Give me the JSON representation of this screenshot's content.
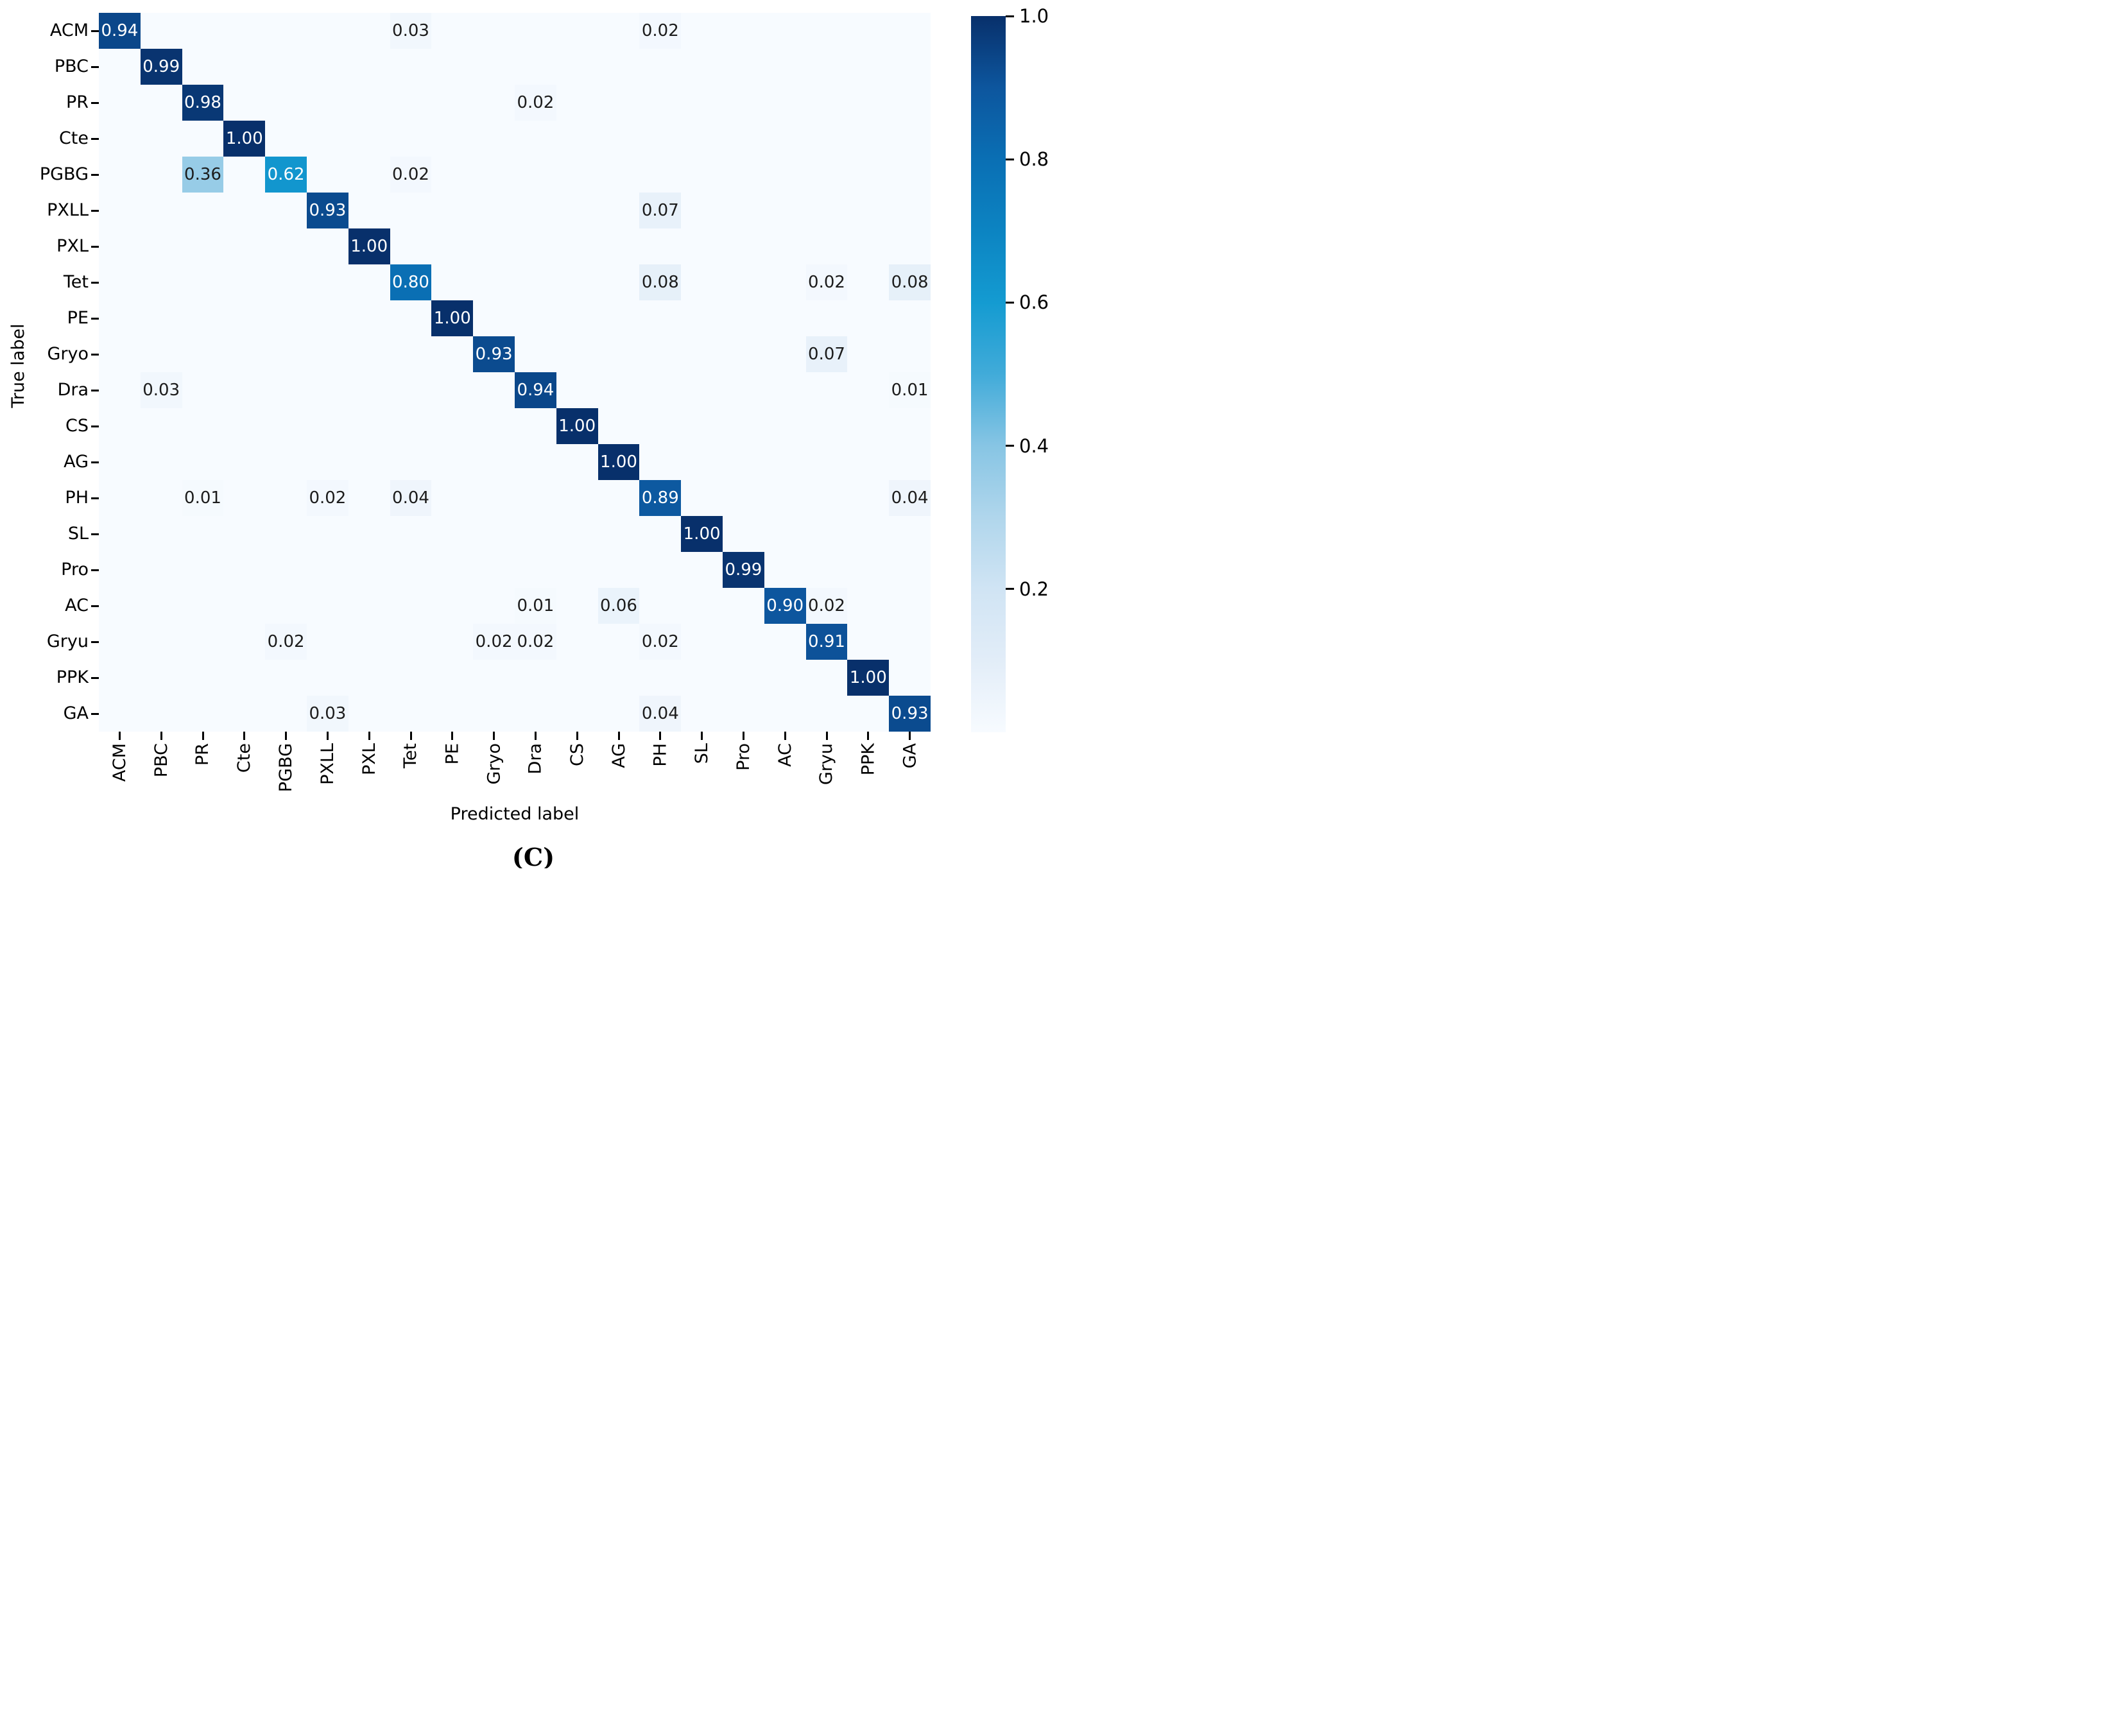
{
  "chart_data": {
    "type": "heatmap",
    "title": "",
    "xlabel": "Predicted label",
    "ylabel": "True label",
    "caption": "(C)",
    "labels": [
      "ACM",
      "PBC",
      "PR",
      "Cte",
      "PGBG",
      "PXLL",
      "PXL",
      "Tet",
      "PE",
      "Gryo",
      "Dra",
      "CS",
      "AG",
      "PH",
      "SL",
      "Pro",
      "AC",
      "Gryu",
      "PPK",
      "GA"
    ],
    "matrix": [
      [
        0.94,
        0,
        0,
        0,
        0,
        0,
        0,
        0.03,
        0,
        0,
        0,
        0,
        0,
        0.02,
        0,
        0,
        0,
        0,
        0,
        0
      ],
      [
        0,
        0.99,
        0,
        0,
        0,
        0,
        0,
        0,
        0,
        0,
        0,
        0,
        0,
        0,
        0,
        0,
        0,
        0,
        0,
        0
      ],
      [
        0,
        0,
        0.98,
        0,
        0,
        0,
        0,
        0,
        0,
        0,
        0.02,
        0,
        0,
        0,
        0,
        0,
        0,
        0,
        0,
        0
      ],
      [
        0,
        0,
        0,
        1.0,
        0,
        0,
        0,
        0,
        0,
        0,
        0,
        0,
        0,
        0,
        0,
        0,
        0,
        0,
        0,
        0
      ],
      [
        0,
        0,
        0.36,
        0,
        0.62,
        0,
        0,
        0.02,
        0,
        0,
        0,
        0,
        0,
        0,
        0,
        0,
        0,
        0,
        0,
        0
      ],
      [
        0,
        0,
        0,
        0,
        0,
        0.93,
        0,
        0,
        0,
        0,
        0,
        0,
        0,
        0.07,
        0,
        0,
        0,
        0,
        0,
        0
      ],
      [
        0,
        0,
        0,
        0,
        0,
        0,
        1.0,
        0,
        0,
        0,
        0,
        0,
        0,
        0,
        0,
        0,
        0,
        0,
        0,
        0
      ],
      [
        0,
        0,
        0,
        0,
        0,
        0,
        0,
        0.8,
        0,
        0,
        0,
        0,
        0,
        0.08,
        0,
        0,
        0,
        0.02,
        0,
        0.08
      ],
      [
        0,
        0,
        0,
        0,
        0,
        0,
        0,
        0,
        1.0,
        0,
        0,
        0,
        0,
        0,
        0,
        0,
        0,
        0,
        0,
        0
      ],
      [
        0,
        0,
        0,
        0,
        0,
        0,
        0,
        0,
        0,
        0.93,
        0,
        0,
        0,
        0,
        0,
        0,
        0,
        0.07,
        0,
        0
      ],
      [
        0,
        0.03,
        0,
        0,
        0,
        0,
        0,
        0,
        0,
        0,
        0.94,
        0,
        0,
        0,
        0,
        0,
        0,
        0,
        0,
        0.01
      ],
      [
        0,
        0,
        0,
        0,
        0,
        0,
        0,
        0,
        0,
        0,
        0,
        1.0,
        0,
        0,
        0,
        0,
        0,
        0,
        0,
        0
      ],
      [
        0,
        0,
        0,
        0,
        0,
        0,
        0,
        0,
        0,
        0,
        0,
        0,
        1.0,
        0,
        0,
        0,
        0,
        0,
        0,
        0
      ],
      [
        0,
        0,
        0.01,
        0,
        0,
        0.02,
        0,
        0.04,
        0,
        0,
        0,
        0,
        0,
        0.89,
        0,
        0,
        0,
        0,
        0,
        0.04
      ],
      [
        0,
        0,
        0,
        0,
        0,
        0,
        0,
        0,
        0,
        0,
        0,
        0,
        0,
        0,
        1.0,
        0,
        0,
        0,
        0,
        0
      ],
      [
        0,
        0,
        0,
        0,
        0,
        0,
        0,
        0,
        0,
        0,
        0,
        0,
        0,
        0,
        0,
        0.99,
        0,
        0,
        0,
        0
      ],
      [
        0,
        0,
        0,
        0,
        0,
        0,
        0,
        0,
        0,
        0,
        0.01,
        0,
        0.06,
        0,
        0,
        0,
        0.9,
        0.02,
        0,
        0
      ],
      [
        0,
        0,
        0,
        0,
        0.02,
        0,
        0,
        0,
        0,
        0.02,
        0.02,
        0,
        0,
        0.02,
        0,
        0,
        0,
        0.91,
        0,
        0
      ],
      [
        0,
        0,
        0,
        0,
        0,
        0,
        0,
        0,
        0,
        0,
        0,
        0,
        0,
        0,
        0,
        0,
        0,
        0,
        1.0,
        0
      ],
      [
        0,
        0,
        0,
        0,
        0,
        0.03,
        0,
        0,
        0,
        0,
        0,
        0,
        0,
        0.04,
        0,
        0,
        0,
        0,
        0,
        0.93
      ]
    ],
    "value_decimals": 2,
    "show_value_min": 0.005,
    "text_color_threshold": 0.5,
    "colorbar": {
      "tick_labels": [
        "1.0",
        "0.8",
        "0.6",
        "0.4",
        "0.2"
      ],
      "tick_values": [
        1.0,
        0.8,
        0.6,
        0.4,
        0.2
      ],
      "vmin": 0.0,
      "vmax": 1.0,
      "position": "right"
    },
    "colormap_stops": [
      [
        0.0,
        "#f7fbff"
      ],
      [
        0.1,
        "#e2edf8"
      ],
      [
        0.2,
        "#d0e4f4"
      ],
      [
        0.3,
        "#b0d6ec"
      ],
      [
        0.4,
        "#87c5e4"
      ],
      [
        0.5,
        "#41abd9"
      ],
      [
        0.6,
        "#149bd1"
      ],
      [
        0.7,
        "#0c84c2"
      ],
      [
        0.8,
        "#0a6fb4"
      ],
      [
        0.9,
        "#0d569e"
      ],
      [
        1.0,
        "#08306b"
      ]
    ],
    "colors": {
      "annotation_dark": "#1c1c1c",
      "annotation_light": "#ffffff",
      "tick_color": "#000000",
      "background": "#ffffff"
    },
    "grid": false,
    "legend_position": "none"
  }
}
